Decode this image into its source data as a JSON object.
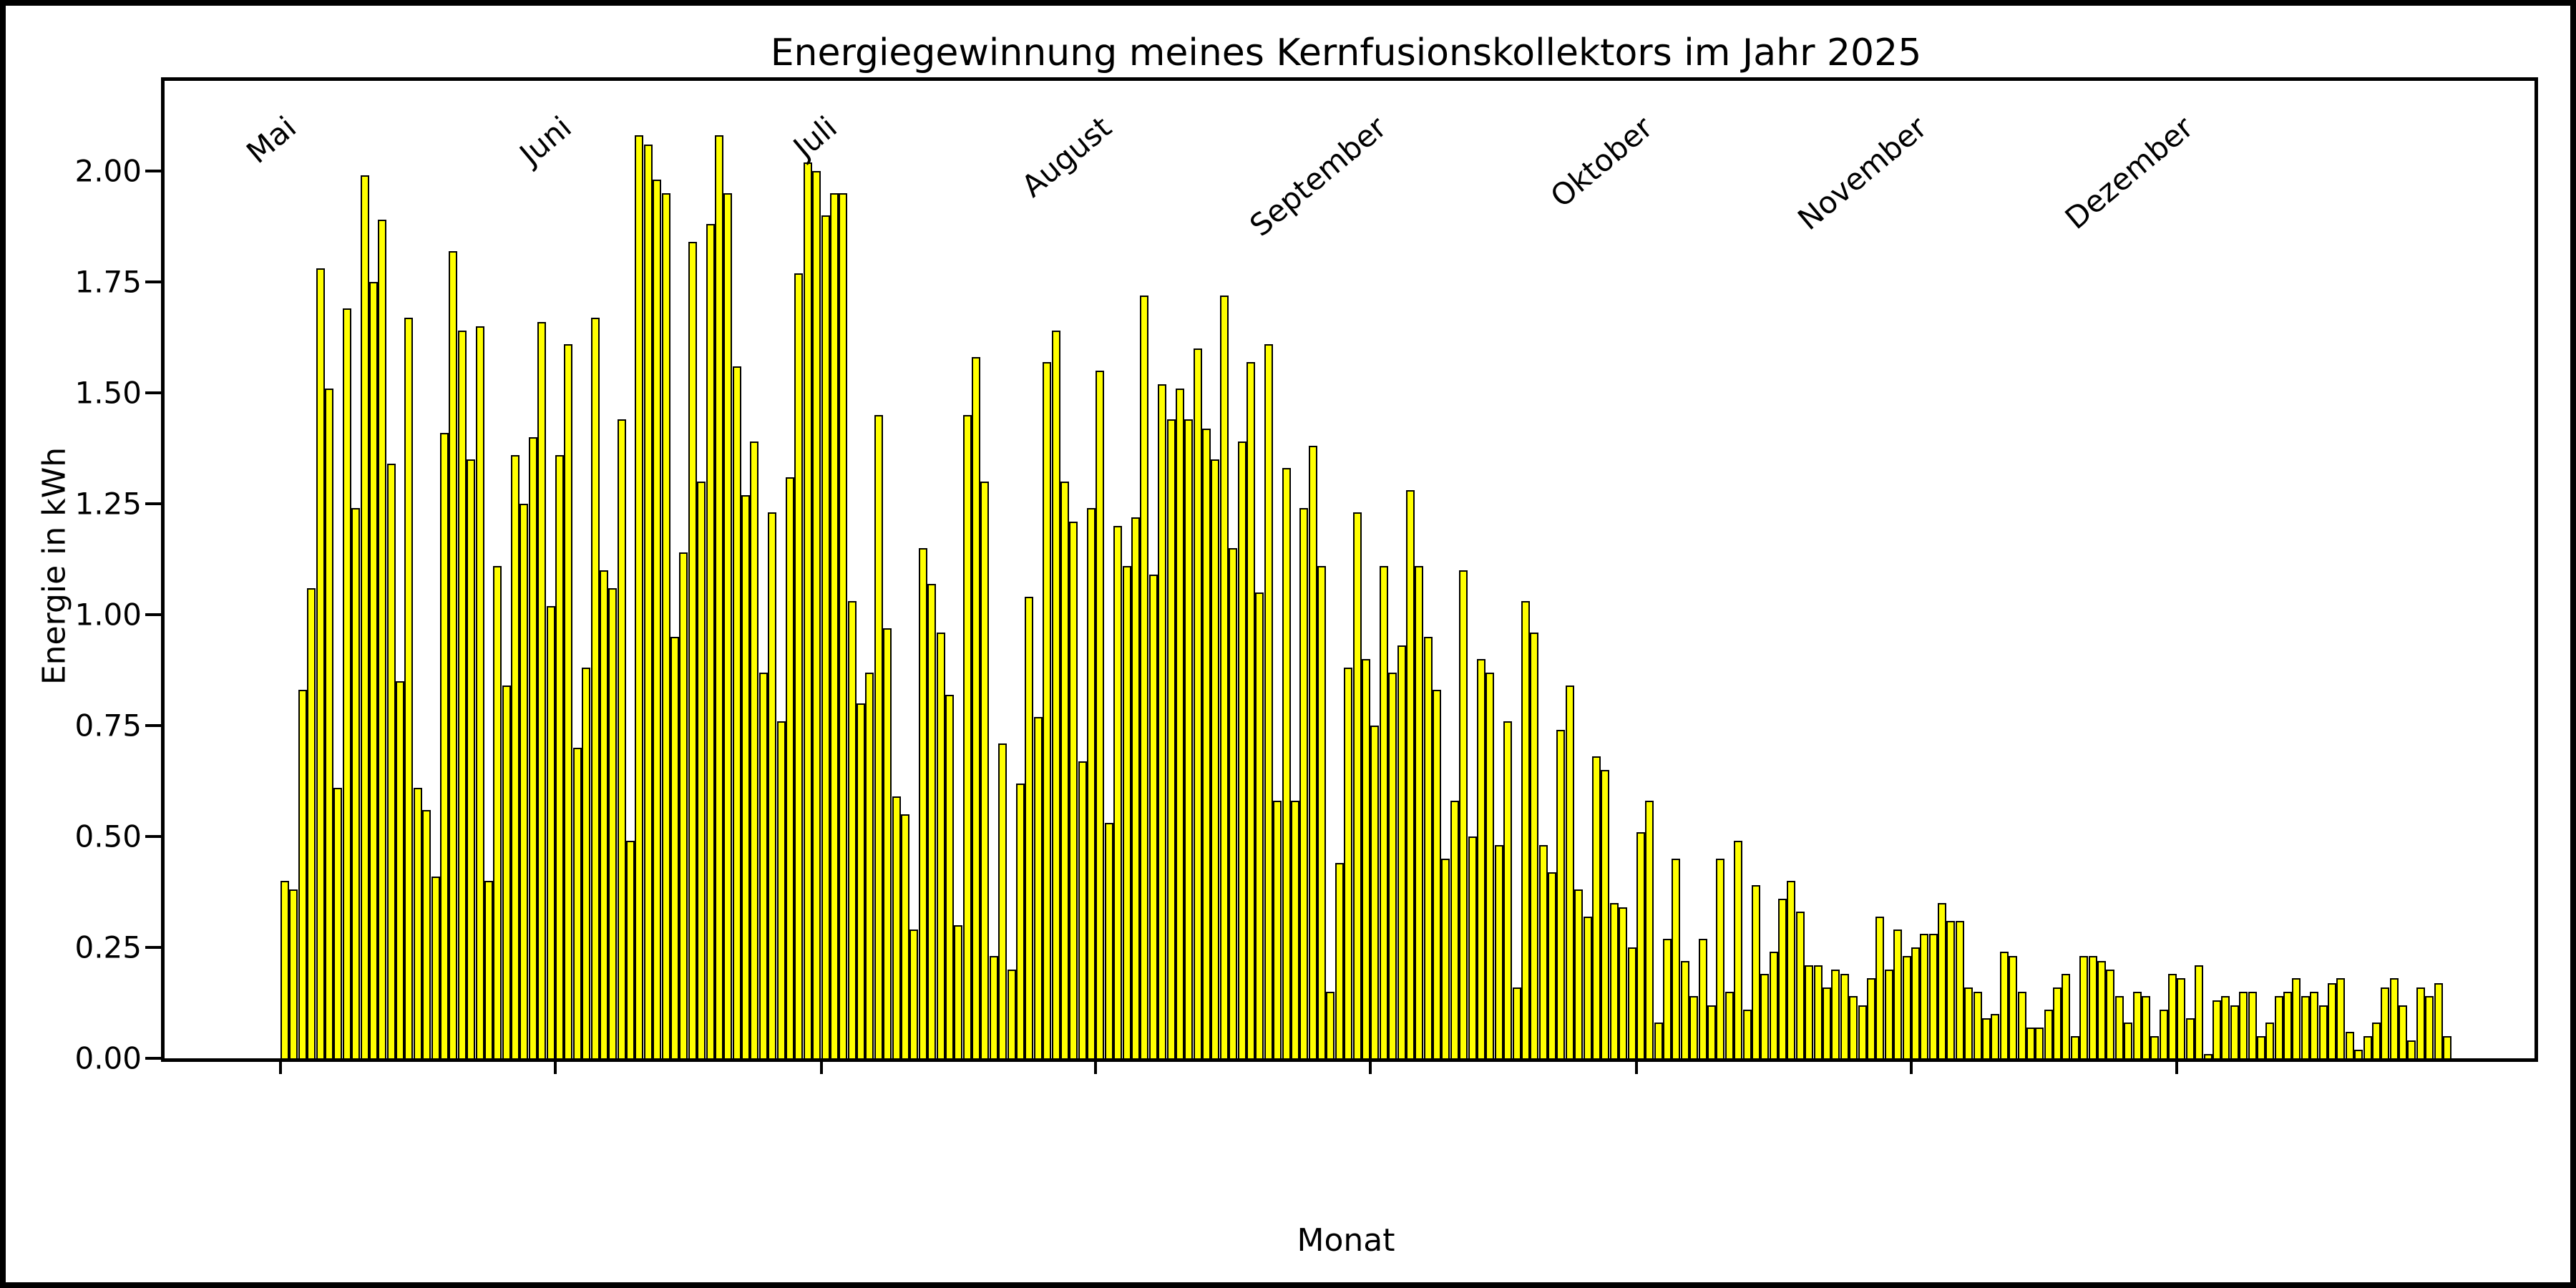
{
  "figure": {
    "background_color": "#ffffff",
    "frame_color": "#000000"
  },
  "chart_data": {
    "type": "bar",
    "title": "Energiegewinnung meines Kernfusionskollektors im Jahr 2025",
    "xlabel": "Monat",
    "ylabel": "Energie in kWh",
    "bar_color": "#ffff00",
    "bar_edge_color": "#000000",
    "grid": false,
    "legend": "none",
    "ylim": [
      0,
      2.2
    ],
    "yticks": [
      "0.00",
      "0.25",
      "0.50",
      "0.75",
      "1.00",
      "1.25",
      "1.50",
      "1.75",
      "2.00"
    ],
    "x_tick_labels": [
      "Mai",
      "Juni",
      "Juli",
      "August",
      "September",
      "Oktober",
      "November",
      "Dezember"
    ],
    "month_start_indices": [
      0,
      31,
      61,
      92,
      123,
      153,
      184,
      214
    ],
    "x_description": "Tageswerte vom 1. Mai bis 31. Dezember 2025",
    "values": [
      0.4,
      0.38,
      0.83,
      1.06,
      1.78,
      1.51,
      0.61,
      1.69,
      1.24,
      1.99,
      1.75,
      1.89,
      1.34,
      0.85,
      1.67,
      0.61,
      0.56,
      0.41,
      1.41,
      1.82,
      1.64,
      1.35,
      1.65,
      0.4,
      1.11,
      0.84,
      1.36,
      1.25,
      1.4,
      1.66,
      1.02,
      1.36,
      1.61,
      0.7,
      0.88,
      1.67,
      1.1,
      1.06,
      1.44,
      0.49,
      2.08,
      2.06,
      1.98,
      1.95,
      0.95,
      1.14,
      1.84,
      1.3,
      1.88,
      2.08,
      1.95,
      1.56,
      1.27,
      1.39,
      0.87,
      1.23,
      0.76,
      1.31,
      1.77,
      2.02,
      2.0,
      1.9,
      1.95,
      1.95,
      1.03,
      0.8,
      0.87,
      1.45,
      0.97,
      0.59,
      0.55,
      0.29,
      1.15,
      1.07,
      0.96,
      0.82,
      0.3,
      1.45,
      1.58,
      1.3,
      0.23,
      0.71,
      0.2,
      0.62,
      1.04,
      0.77,
      1.57,
      1.64,
      1.3,
      1.21,
      0.67,
      1.24,
      1.55,
      0.53,
      1.2,
      1.11,
      1.22,
      1.72,
      1.09,
      1.52,
      1.44,
      1.51,
      1.44,
      1.6,
      1.42,
      1.35,
      1.72,
      1.15,
      1.39,
      1.57,
      1.05,
      1.61,
      0.58,
      1.33,
      0.58,
      1.24,
      1.38,
      1.11,
      0.15,
      0.44,
      0.88,
      1.23,
      0.9,
      0.75,
      1.11,
      0.87,
      0.93,
      1.28,
      1.11,
      0.95,
      0.83,
      0.45,
      0.58,
      1.1,
      0.5,
      0.9,
      0.87,
      0.48,
      0.76,
      0.16,
      1.03,
      0.96,
      0.48,
      0.42,
      0.74,
      0.84,
      0.38,
      0.32,
      0.68,
      0.65,
      0.35,
      0.34,
      0.25,
      0.51,
      0.58,
      0.08,
      0.27,
      0.45,
      0.22,
      0.14,
      0.27,
      0.12,
      0.45,
      0.15,
      0.49,
      0.11,
      0.39,
      0.19,
      0.24,
      0.36,
      0.4,
      0.33,
      0.21,
      0.21,
      0.16,
      0.2,
      0.19,
      0.14,
      0.12,
      0.18,
      0.32,
      0.2,
      0.29,
      0.23,
      0.25,
      0.28,
      0.28,
      0.35,
      0.31,
      0.31,
      0.16,
      0.15,
      0.09,
      0.1,
      0.24,
      0.23,
      0.15,
      0.07,
      0.07,
      0.11,
      0.16,
      0.19,
      0.05,
      0.23,
      0.23,
      0.22,
      0.2,
      0.14,
      0.08,
      0.15,
      0.14,
      0.05,
      0.11,
      0.19,
      0.18,
      0.09,
      0.21,
      0.01,
      0.13,
      0.14,
      0.12,
      0.15,
      0.15,
      0.05,
      0.08,
      0.14,
      0.15,
      0.18,
      0.14,
      0.15,
      0.12,
      0.17,
      0.18,
      0.06,
      0.02,
      0.05,
      0.08,
      0.16,
      0.18,
      0.12,
      0.04,
      0.16,
      0.14,
      0.17,
      0.05
    ]
  }
}
